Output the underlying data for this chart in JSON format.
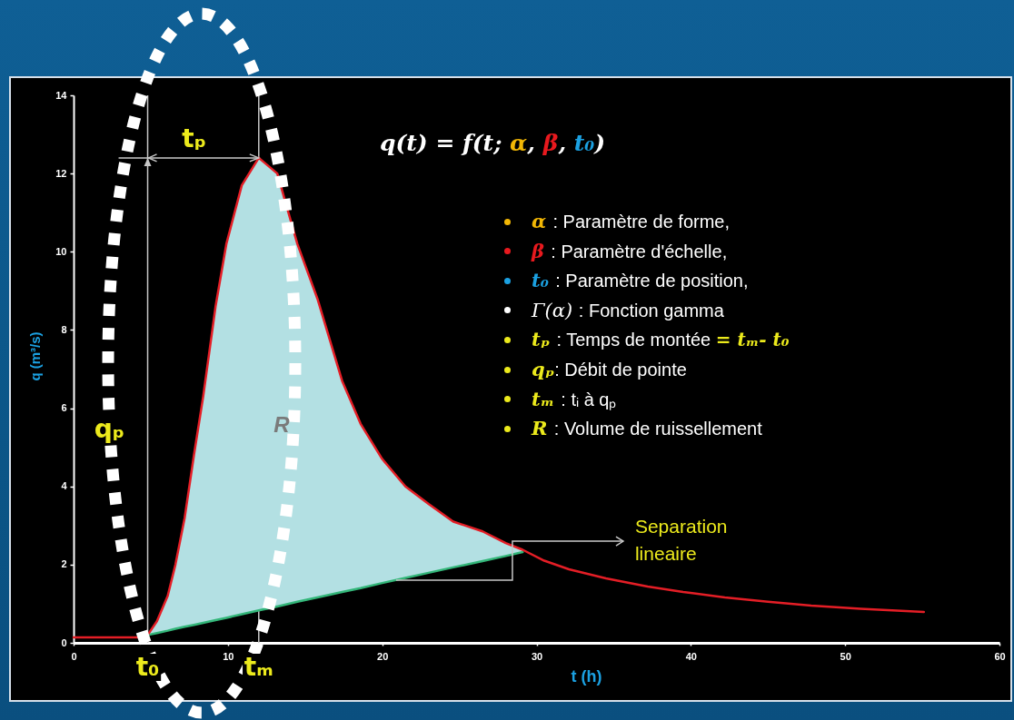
{
  "chart_data": {
    "type": "line",
    "xlabel": "t (h)",
    "ylabel": "q (m³/s)",
    "xlim": [
      0,
      60
    ],
    "xticks": [
      0,
      10,
      20,
      30,
      40,
      50,
      60
    ],
    "ylim": [
      0,
      14
    ],
    "yticks": [
      0,
      2,
      4,
      6,
      8,
      10,
      12,
      14
    ],
    "series": [
      {
        "color": "#33b679",
        "x": [
          4.8,
          5.4,
          6.1,
          6.6,
          7.2,
          7.8,
          8.4,
          9.2,
          9.9,
          10.9,
          12,
          13.2,
          14.5,
          15.8,
          17.4,
          18.6,
          20,
          21.5,
          23,
          24.6,
          26.5,
          28,
          29.1
        ],
        "values": [
          0.2,
          0.25,
          0.31,
          0.36,
          0.41,
          0.46,
          0.51,
          0.58,
          0.64,
          0.73,
          0.83,
          0.93,
          1.05,
          1.16,
          1.3,
          1.4,
          1.53,
          1.66,
          1.79,
          1.93,
          2.09,
          2.22,
          2.32
        ],
        "lower": [
          0.2,
          0.25,
          0.31,
          0.36,
          0.41,
          0.46,
          0.51,
          0.58,
          0.64,
          0.73,
          0.83,
          0.93,
          1.05,
          1.16,
          1.3,
          1.4,
          1.53,
          1.66,
          1.79,
          1.93,
          2.09,
          2.22,
          2.32
        ],
        "upper": [
          0.2,
          0.55,
          1.2,
          2.0,
          3.2,
          4.8,
          6.3,
          8.6,
          10.2,
          11.7,
          12.4,
          12.0,
          10.2,
          8.8,
          6.7,
          5.6,
          4.7,
          4.0,
          3.55,
          3.1,
          2.85,
          2.55,
          2.38
        ]
      },
      {
        "color": "#e41e26",
        "x": [
          0,
          2,
          4.6,
          4.8,
          5.4,
          6.1,
          6.6,
          7.2,
          7.8,
          8.4,
          9.2,
          9.9,
          10.9,
          12,
          13.2,
          14.5,
          15.8,
          17.4,
          18.6,
          20,
          21.5,
          23,
          24.6,
          26.5,
          28,
          29.1,
          30.5,
          32.1,
          34.5,
          37.2,
          39.5,
          42.2,
          45,
          47.8,
          51,
          55.1
        ],
        "values": [
          0.14,
          0.14,
          0.14,
          0.2,
          0.55,
          1.2,
          2.0,
          3.2,
          4.8,
          6.3,
          8.6,
          10.2,
          11.7,
          12.4,
          12.0,
          10.2,
          8.8,
          6.7,
          5.6,
          4.7,
          4.0,
          3.55,
          3.1,
          2.85,
          2.55,
          2.38,
          2.1,
          1.88,
          1.65,
          1.44,
          1.3,
          1.16,
          1.05,
          0.95,
          0.87,
          0.79
        ]
      }
    ],
    "ref_lines": [
      {
        "axis": "x",
        "value": 4.8,
        "label": "t₀",
        "color": "#c8c8c8"
      },
      {
        "axis": "x",
        "value": 12,
        "label": "tₘ",
        "color": "#c8c8c8"
      }
    ],
    "annotations": [
      "q(t) = f(t; α, β, t₀)",
      "α : Paramètre de forme,",
      "β : Paramètre d'échelle,",
      "t₀ : Paramètre de position,",
      "Γ(α) : Fonction gamma",
      "tₚ : Temps de montée = tₘ- t₀",
      "qₚ: Débit de pointe",
      "tₘ : tᵢ à qₚ",
      "R : Volume de ruissellement",
      "tₚ",
      "qₚ",
      "R",
      {
        "text": "Separation lineaire",
        "x": 20.9,
        "y": 1.6
      }
    ]
  }
}
